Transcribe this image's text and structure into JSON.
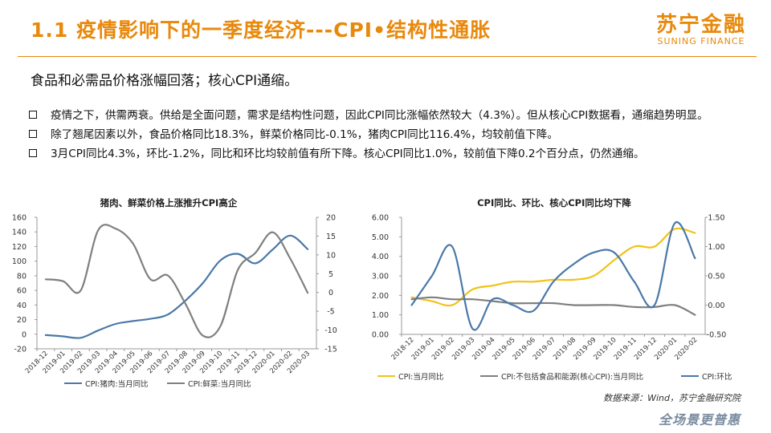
{
  "header": {
    "title": "1.1 疫情影响下的一季度经济---CPI•结构性通胀",
    "logo_cn": "苏宁金融",
    "logo_en": "SUNING FINANCE"
  },
  "subtitle": "食品和必需品价格涨幅回落；核心CPI通缩。",
  "bullets": [
    "疫情之下，供需两衰。供给是全面问题，需求是结构性问题，因此CPI同比涨幅依然较大（4.3%）。但从核心CPI数据看，通缩趋势明显。",
    "除了翘尾因素以外，食品价格同比18.3%，鲜菜价格同比-0.1%，猪肉CPI同比116.4%，均较前值下降。",
    "3月CPI同比4.3%，环比-1.2%，同比和环比均较前值有所下降。核心CPI同比1.0%，较前值下降0.2个百分点，仍然通缩。"
  ],
  "source": "数据来源：Wind，苏宁金融研究院",
  "footer_logo": "全场景更普惠",
  "colors": {
    "accent": "#E8890C",
    "blue": "#4A78A8",
    "gray": "#7F7F7F",
    "yellow": "#F2C218"
  },
  "chart_data": [
    {
      "type": "line",
      "title": "猪肉、鲜菜价格上涨推升CPI高企",
      "categories": [
        "2018-12",
        "2019-01",
        "2019-02",
        "2019-03",
        "2019-04",
        "2019-05",
        "2019-06",
        "2019-07",
        "2019-08",
        "2019-09",
        "2019-10",
        "2019-11",
        "2019-12",
        "2020-01",
        "2020-02",
        "2020-03"
      ],
      "left_axis": {
        "min": -20,
        "max": 160,
        "ticks": [
          -20,
          0,
          20,
          40,
          60,
          80,
          100,
          120,
          140,
          160
        ]
      },
      "right_axis": {
        "min": -15,
        "max": 20,
        "ticks": [
          -15,
          -10,
          -5,
          0,
          5,
          10,
          15,
          20
        ]
      },
      "series": [
        {
          "name": "CPI:猪肉:当月同比",
          "axis": "left",
          "color": "#4A78A8",
          "values": [
            -1.2,
            -3.0,
            -5.0,
            5.0,
            14.0,
            18.0,
            21.0,
            27.0,
            46.0,
            70.0,
            101.0,
            110.0,
            97.0,
            116.0,
            135.0,
            116.4
          ]
        },
        {
          "name": "CPI:鲜菜:当月同比",
          "axis": "right",
          "color": "#7F7F7F",
          "values": [
            3.5,
            3.0,
            0.5,
            16.5,
            17.0,
            13.0,
            3.5,
            4.5,
            -3.0,
            -11.5,
            -9.0,
            6.0,
            10.5,
            16.0,
            9.0,
            -0.1
          ]
        }
      ],
      "legend_position": "bottom"
    },
    {
      "type": "line",
      "title": "CPI同比、环比、核心CPI同比均下降",
      "categories": [
        "2018-12",
        "2019-01",
        "2019-02",
        "2019-03",
        "2019-04",
        "2019-05",
        "2019-06",
        "2019-07",
        "2019-08",
        "2019-09",
        "2019-10",
        "2019-11",
        "2019-12",
        "2020-01",
        "2020-02"
      ],
      "left_axis": {
        "min": 0,
        "max": 6,
        "ticks": [
          "0.00",
          "1.00",
          "2.00",
          "3.00",
          "4.00",
          "5.00",
          "6.00"
        ]
      },
      "right_axis": {
        "min": -0.5,
        "max": 1.5,
        "ticks": [
          "-0.50",
          "0.00",
          "0.50",
          "1.00",
          "1.50"
        ]
      },
      "series": [
        {
          "name": "CPI:当月同比",
          "axis": "left",
          "color": "#F2C218",
          "values": [
            1.9,
            1.7,
            1.5,
            2.3,
            2.5,
            2.7,
            2.7,
            2.8,
            2.8,
            3.0,
            3.8,
            4.5,
            4.5,
            5.4,
            5.2
          ]
        },
        {
          "name": "CPI:不包括食品和能源(核心CPI):当月同比",
          "axis": "left",
          "color": "#7F7F7F",
          "values": [
            1.8,
            1.9,
            1.8,
            1.8,
            1.7,
            1.6,
            1.6,
            1.6,
            1.5,
            1.5,
            1.5,
            1.4,
            1.4,
            1.5,
            1.0
          ]
        },
        {
          "name": "CPI:环比",
          "axis": "right",
          "color": "#4A78A8",
          "values": [
            0.0,
            0.5,
            1.0,
            -0.4,
            0.1,
            0.0,
            -0.1,
            0.4,
            0.7,
            0.9,
            0.9,
            0.4,
            0.0,
            1.4,
            0.8
          ]
        }
      ],
      "legend_position": "bottom"
    }
  ]
}
